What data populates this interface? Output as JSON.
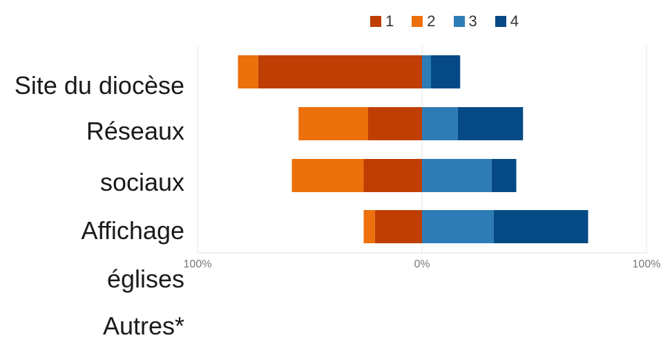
{
  "chart_data": {
    "type": "bar",
    "orientation": "horizontal-diverging",
    "categories": [
      "Site du diocèse",
      "Réseaux sociaux",
      "Affichage églises",
      "Autres*"
    ],
    "category_label_lines": [
      "Site du diocèse",
      "Réseaux",
      "sociaux",
      "Affichage",
      "églises",
      "Autres*"
    ],
    "series": [
      {
        "name": "1",
        "color": "#bf3e03",
        "side": "negative",
        "values": [
          73,
          24,
          26,
          21
        ]
      },
      {
        "name": "2",
        "color": "#ec700b",
        "side": "negative",
        "values": [
          9,
          31,
          32,
          5
        ]
      },
      {
        "name": "3",
        "color": "#2e7cb6",
        "side": "positive",
        "values": [
          4,
          16,
          31,
          32
        ]
      },
      {
        "name": "4",
        "color": "#054a85",
        "side": "positive",
        "values": [
          13,
          29,
          11,
          42
        ]
      }
    ],
    "x_ticks": [
      "100%",
      "0%",
      "100%"
    ],
    "xlim": [
      -100,
      100
    ],
    "legend_position": "top-right",
    "grid": true
  }
}
